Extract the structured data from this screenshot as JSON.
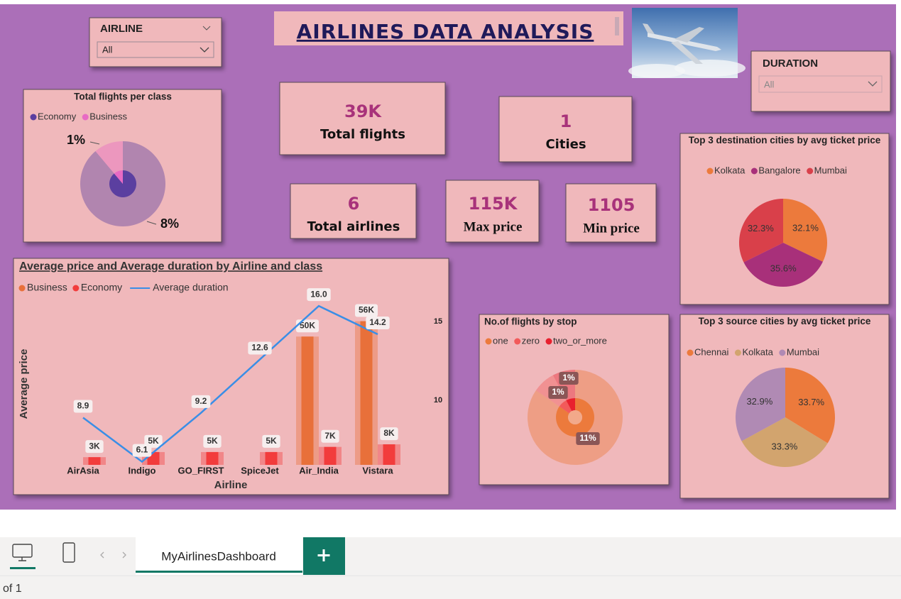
{
  "header": {
    "title": "AIRLINES DATA ANALYSIS"
  },
  "slicers": [
    {
      "label": "AIRLINE",
      "value": "All"
    },
    {
      "label": "DURATION",
      "value": "All"
    }
  ],
  "cards": [
    {
      "value": "39K",
      "label": "Total flights"
    },
    {
      "value": "1",
      "label": "Cities"
    },
    {
      "value": "6",
      "label": "Total airlines"
    },
    {
      "value": "115K",
      "label": "Max price"
    },
    {
      "value": "1105",
      "label": "Min price"
    }
  ],
  "chart_data": [
    {
      "type": "pie",
      "title": "Total flights per class",
      "categories": [
        "Economy",
        "Business"
      ],
      "values": [
        8,
        1
      ],
      "value_labels": [
        "8%",
        "1%"
      ],
      "colors": [
        "#5b3fa0",
        "#e86ac4"
      ]
    },
    {
      "type": "combo",
      "title": "Average price and Average duration by Airline and class",
      "x_label": "Airline",
      "y_label": "Average price",
      "categories": [
        "AirAsia",
        "Indigo",
        "GO_FIRST",
        "SpiceJet",
        "Air_India",
        "Vistara"
      ],
      "series": [
        {
          "name": "Business",
          "type": "bar",
          "color": "#e8703a",
          "values": [
            null,
            null,
            null,
            null,
            50000,
            56000
          ],
          "value_labels": [
            null,
            null,
            null,
            null,
            "50K",
            "56K"
          ]
        },
        {
          "name": "Economy",
          "type": "bar",
          "color": "#f23c3c",
          "values": [
            3000,
            5000,
            5000,
            5000,
            7000,
            8000
          ],
          "value_labels": [
            "3K",
            "5K",
            "5K",
            "5K",
            "7K",
            "8K"
          ]
        },
        {
          "name": "Average duration",
          "type": "line",
          "axis": "y2",
          "color": "#3a8ee6",
          "values": [
            8.9,
            6.1,
            9.2,
            12.6,
            16.0,
            14.2
          ],
          "value_labels": [
            "8.9",
            "6.1",
            "9.2",
            "12.6",
            "16.0",
            "14.2"
          ]
        }
      ],
      "ylim": [
        0,
        65000
      ],
      "y2lim": [
        5.9,
        16.5
      ],
      "y2ticks": [
        10,
        15
      ]
    },
    {
      "type": "donut",
      "title": "No.of flights by stop",
      "categories": [
        "one",
        "zero",
        "two_or_more"
      ],
      "values": [
        11,
        1,
        1
      ],
      "value_labels": [
        "11%",
        "1%",
        "1%"
      ],
      "colors": [
        "#ec7a3c",
        "#f25a5a",
        "#e8202e"
      ]
    },
    {
      "type": "pie",
      "title": "Top 3 destination cities by avg ticket price",
      "categories": [
        "Kolkata",
        "Bangalore",
        "Mumbai"
      ],
      "values": [
        32.1,
        35.6,
        32.3
      ],
      "value_labels": [
        "32.1%",
        "35.6%",
        "32.3%"
      ],
      "colors": [
        "#ec7a3c",
        "#a8307a",
        "#d9404a"
      ]
    },
    {
      "type": "pie",
      "title": "Top 3 source cities by avg ticket price",
      "categories": [
        "Chennai",
        "Kolkata",
        "Mumbai"
      ],
      "values": [
        33.7,
        33.3,
        32.9
      ],
      "value_labels": [
        "33.7%",
        "33.3%",
        "32.9%"
      ],
      "colors": [
        "#ec7a3c",
        "#d2a46e",
        "#b08ab4"
      ]
    }
  ],
  "footer": {
    "tab": "MyAirlinesDashboard",
    "page_status": "of 1"
  }
}
